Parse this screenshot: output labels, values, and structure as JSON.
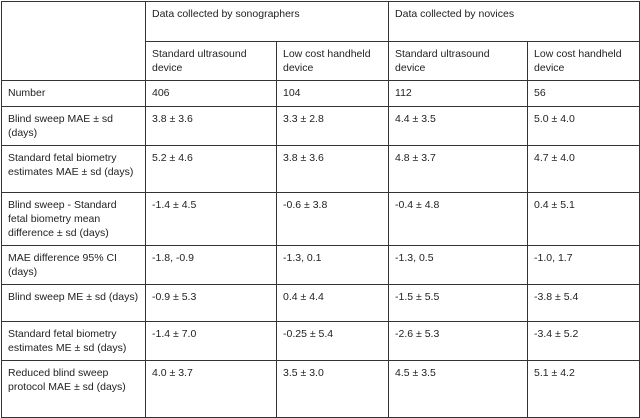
{
  "header": {
    "groups": [
      "Data collected by sonographers",
      "Data collected by novices"
    ],
    "devices": [
      "Standard ultrasound device",
      "Low cost handheld device",
      "Standard ultrasound device",
      "Low cost handheld device"
    ]
  },
  "rows": [
    {
      "label": "Number",
      "values": [
        "406",
        "104",
        "112",
        "56"
      ]
    },
    {
      "label": "Blind sweep MAE ±  sd (days)",
      "values": [
        "3.8 ± 3.6",
        "3.3 ± 2.8",
        "4.4 ± 3.5",
        "5.0 ± 4.0"
      ]
    },
    {
      "label": "Standard fetal biometry estimates MAE ± sd (days)",
      "values": [
        "5.2 ± 4.6",
        "3.8 ± 3.6",
        "4.8 ± 3.7",
        "4.7 ± 4.0"
      ]
    },
    {
      "label": "Blind sweep - Standard fetal biometry mean difference ± sd (days)",
      "values": [
        "-1.4 ± 4.5",
        "-0.6 ± 3.8",
        "-0.4 ± 4.8",
        "0.4 ± 5.1"
      ]
    },
    {
      "label": "MAE difference 95% CI (days)",
      "values": [
        "-1.8, -0.9",
        "-1.3, 0.1",
        "-1.3, 0.5",
        "-1.0, 1.7"
      ]
    },
    {
      "label": "Blind sweep ME  ±  sd (days)",
      "values": [
        "-0.9 ± 5.3",
        "0.4 ± 4.4",
        "-1.5 ± 5.5",
        "-3.8 ± 5.4"
      ]
    },
    {
      "label": "Standard fetal biometry estimates ME ±  sd (days)",
      "values": [
        "-1.4 ± 7.0",
        "-0.25 ± 5.4",
        "-2.6 ± 5.3",
        "-3.4 ± 5.2"
      ]
    },
    {
      "label": "Reduced blind sweep protocol MAE ±  sd (days)",
      "values": [
        "4.0 ± 3.7",
        "3.5 ± 3.0",
        "4.5 ± 3.5",
        "5.1 ± 4.2"
      ]
    }
  ]
}
